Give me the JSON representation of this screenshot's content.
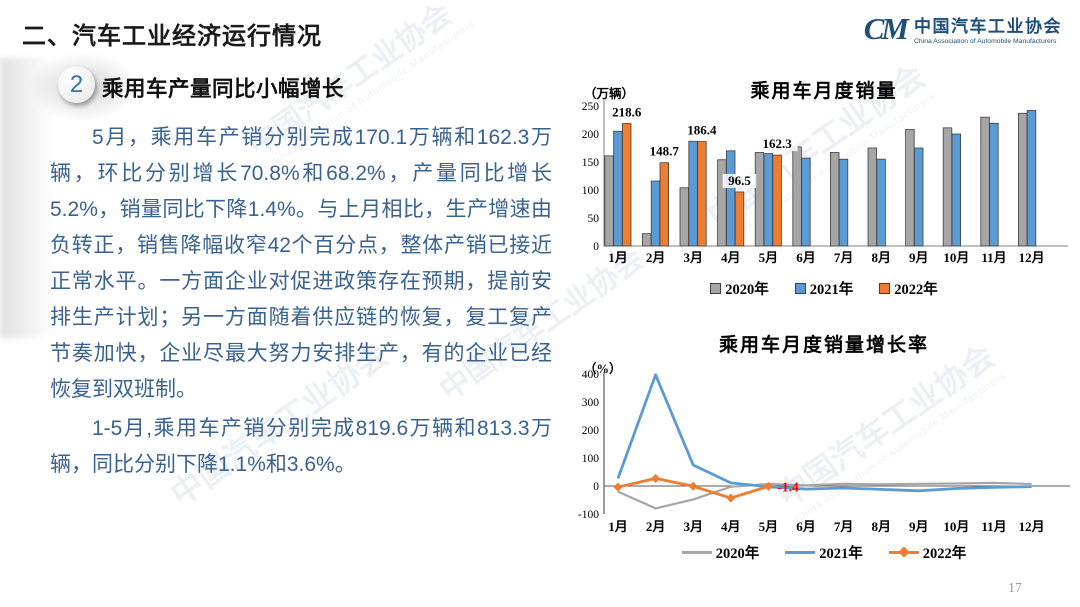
{
  "page": {
    "title": "二、汽车工业经济运行情况",
    "page_number": "17"
  },
  "logo": {
    "acronym": "CM",
    "name_cn": "中国汽车工业协会",
    "name_en": "China Association of Automobile Manufacturers"
  },
  "section": {
    "badge_number": "2",
    "heading": "乘用车产量同比小幅增长"
  },
  "body": {
    "paragraph1": "5月，乘用车产销分别完成170.1万辆和162.3万辆，环比分别增长70.8%和68.2%，产量同比增长5.2%，销量同比下降1.4%。与上月相比，生产增速由负转正，销售降幅收窄42个百分点，整体产销已接近正常水平。一方面企业对促进政策存在预期，提前安排生产计划；另一方面随着供应链的恢复，复工复产节奏加快，企业尽最大努力安排生产，有的企业已经恢复到双班制。",
    "paragraph2": "1-5月,乘用车产销分别完成819.6万辆和813.3万辆，同比分别下降1.1%和3.6%。"
  },
  "watermark": {
    "text_cn": "中国汽车工业协会",
    "text_en": "China Association of Automobile Manufacturers"
  },
  "colors": {
    "body_text": "#3A6291",
    "logo_blue": "#1F4E79",
    "series_2020": "#A6A6A6",
    "series_2021": "#5B9BD5",
    "series_2022": "#ED7D31",
    "annotation_red": "#FF0000",
    "bar_outline": "#404040",
    "axis_line": "#7f7f7f"
  },
  "chart_data": [
    {
      "type": "bar",
      "title": "乘用车月度销量",
      "unit_label": "（万辆）",
      "categories": [
        "1月",
        "2月",
        "3月",
        "4月",
        "5月",
        "6月",
        "7月",
        "8月",
        "9月",
        "10月",
        "11月",
        "12月"
      ],
      "ylim": [
        0,
        250
      ],
      "yticks": [
        0,
        50,
        100,
        150,
        200,
        250
      ],
      "grid": false,
      "legend_position": "bottom",
      "series": [
        {
          "name": "2020年",
          "color": "#A6A6A6",
          "values": [
            161,
            22,
            104,
            154,
            167,
            177,
            167,
            175,
            208,
            211,
            230,
            237
          ]
        },
        {
          "name": "2021年",
          "color": "#5B9BD5",
          "values": [
            205,
            116,
            187,
            170,
            165,
            157,
            155,
            155,
            175,
            200,
            219,
            242
          ]
        },
        {
          "name": "2022年",
          "color": "#ED7D31",
          "values": [
            218.6,
            148.7,
            186.4,
            96.5,
            162.3,
            null,
            null,
            null,
            null,
            null,
            null,
            null
          ],
          "data_labels": [
            "218.6",
            "148.7",
            "186.4",
            "96.5",
            "162.3",
            null,
            null,
            null,
            null,
            null,
            null,
            null
          ]
        }
      ]
    },
    {
      "type": "line",
      "title": "乘用车月度销量增长率",
      "unit_label": "（%）",
      "categories": [
        "1月",
        "2月",
        "3月",
        "4月",
        "5月",
        "6月",
        "7月",
        "8月",
        "9月",
        "10月",
        "11月",
        "12月"
      ],
      "ylim": [
        -100,
        400
      ],
      "yticks": [
        400,
        300,
        200,
        100,
        0,
        -100
      ],
      "grid": false,
      "legend_position": "bottom",
      "series": [
        {
          "name": "2020年",
          "color": "#A6A6A6",
          "marker": "none",
          "values": [
            -20,
            -80,
            -48,
            -3,
            7,
            2,
            8,
            6,
            8,
            9,
            11,
            7
          ]
        },
        {
          "name": "2021年",
          "color": "#5B9BD5",
          "marker": "none",
          "values": [
            27,
            397,
            75,
            11,
            -3,
            -11,
            -7,
            -12,
            -17,
            -9,
            -5,
            -2
          ]
        },
        {
          "name": "2022年",
          "color": "#ED7D31",
          "marker": "diamond",
          "values": [
            -4,
            27,
            -1,
            -43,
            -1.4,
            null,
            null,
            null,
            null,
            null,
            null,
            null
          ]
        }
      ],
      "annotation": {
        "text": "-1.4",
        "color": "#FF0000",
        "month_index": 4,
        "value": -1.4
      }
    }
  ]
}
